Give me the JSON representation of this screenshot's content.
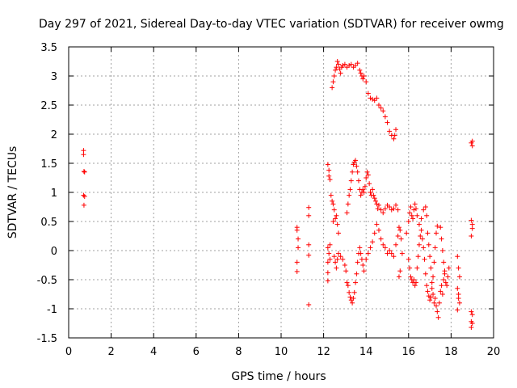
{
  "chart_data": {
    "type": "scatter",
    "title": "Day 297 of 2021, Sidereal Day-to-day VTEC variation (SDTVAR) for receiver owmg",
    "xlabel": "GPS time / hours",
    "ylabel": "SDTVAR / TECUs",
    "xlim": [
      0,
      20
    ],
    "ylim": [
      -1.5,
      3.5
    ],
    "xticks": [
      0,
      2,
      4,
      6,
      8,
      10,
      12,
      14,
      16,
      18,
      20
    ],
    "xtick_labels": [
      "0",
      "2",
      "4",
      "6",
      "8",
      "10",
      "12",
      "14",
      "16",
      "18",
      "20"
    ],
    "yticks": [
      -1.5,
      -1,
      -0.5,
      0,
      0.5,
      1,
      1.5,
      2,
      2.5,
      3,
      3.5
    ],
    "ytick_labels": [
      "-1.5",
      "-1",
      "-0.5",
      "0",
      "0.5",
      "1",
      "1.5",
      "2",
      "2.5",
      "3",
      "3.5"
    ],
    "grid": true,
    "marker": "+",
    "color": "#ff0000",
    "series": [
      {
        "name": "SDTVAR",
        "points": [
          [
            0.7,
            1.72
          ],
          [
            0.7,
            1.65
          ],
          [
            0.72,
            1.36
          ],
          [
            0.75,
            1.35
          ],
          [
            0.7,
            0.95
          ],
          [
            0.75,
            0.93
          ],
          [
            0.72,
            0.78
          ],
          [
            10.75,
            0.4
          ],
          [
            10.75,
            0.35
          ],
          [
            10.8,
            0.2
          ],
          [
            10.8,
            0.05
          ],
          [
            10.75,
            -0.2
          ],
          [
            10.75,
            -0.36
          ],
          [
            11.3,
            0.74
          ],
          [
            11.3,
            0.6
          ],
          [
            11.3,
            0.1
          ],
          [
            11.3,
            -0.08
          ],
          [
            11.3,
            -0.93
          ],
          [
            12.2,
            1.48
          ],
          [
            12.25,
            1.38
          ],
          [
            12.25,
            1.28
          ],
          [
            12.3,
            1.22
          ],
          [
            12.35,
            0.95
          ],
          [
            12.2,
            0.05
          ],
          [
            12.25,
            -0.05
          ],
          [
            12.2,
            -0.2
          ],
          [
            12.2,
            -0.38
          ],
          [
            12.2,
            -0.52
          ],
          [
            12.3,
            -0.15
          ],
          [
            12.3,
            0.1
          ],
          [
            12.4,
            2.8
          ],
          [
            12.45,
            2.9
          ],
          [
            12.5,
            3.0
          ],
          [
            12.55,
            3.1
          ],
          [
            12.6,
            3.15
          ],
          [
            12.65,
            3.25
          ],
          [
            12.7,
            3.2
          ],
          [
            12.75,
            3.12
          ],
          [
            12.8,
            3.05
          ],
          [
            12.85,
            3.15
          ],
          [
            12.9,
            3.18
          ],
          [
            13.0,
            3.2
          ],
          [
            13.1,
            3.15
          ],
          [
            13.2,
            3.18
          ],
          [
            13.3,
            3.2
          ],
          [
            13.4,
            3.15
          ],
          [
            13.5,
            3.18
          ],
          [
            13.6,
            3.22
          ],
          [
            13.7,
            3.1
          ],
          [
            13.75,
            3.05
          ],
          [
            13.8,
            3.0
          ],
          [
            13.85,
            2.95
          ],
          [
            13.9,
            3.0
          ],
          [
            14.0,
            2.9
          ],
          [
            14.1,
            2.7
          ],
          [
            14.2,
            2.62
          ],
          [
            14.3,
            2.6
          ],
          [
            14.4,
            2.58
          ],
          [
            14.5,
            2.62
          ],
          [
            14.6,
            2.5
          ],
          [
            14.7,
            2.45
          ],
          [
            14.8,
            2.4
          ],
          [
            14.9,
            2.3
          ],
          [
            15.0,
            2.2
          ],
          [
            15.1,
            2.05
          ],
          [
            15.2,
            1.98
          ],
          [
            15.3,
            1.92
          ],
          [
            15.35,
            1.98
          ],
          [
            15.4,
            2.08
          ],
          [
            12.4,
            0.85
          ],
          [
            12.45,
            0.8
          ],
          [
            12.5,
            0.7
          ],
          [
            12.45,
            0.5
          ],
          [
            12.55,
            0.55
          ],
          [
            12.6,
            0.6
          ],
          [
            12.65,
            0.45
          ],
          [
            12.7,
            0.3
          ],
          [
            12.5,
            -0.1
          ],
          [
            12.55,
            -0.2
          ],
          [
            12.6,
            -0.3
          ],
          [
            12.65,
            -0.15
          ],
          [
            12.7,
            -0.05
          ],
          [
            12.8,
            -0.1
          ],
          [
            12.9,
            -0.15
          ],
          [
            13.0,
            -0.25
          ],
          [
            13.05,
            -0.35
          ],
          [
            13.1,
            -0.55
          ],
          [
            13.15,
            -0.6
          ],
          [
            13.2,
            -0.72
          ],
          [
            13.25,
            -0.8
          ],
          [
            13.3,
            -0.85
          ],
          [
            13.35,
            -0.9
          ],
          [
            13.4,
            -0.82
          ],
          [
            13.45,
            -0.72
          ],
          [
            13.5,
            -0.55
          ],
          [
            13.55,
            -0.4
          ],
          [
            13.6,
            -0.2
          ],
          [
            13.65,
            -0.05
          ],
          [
            13.7,
            0.05
          ],
          [
            13.75,
            -0.05
          ],
          [
            13.8,
            -0.15
          ],
          [
            13.85,
            -0.25
          ],
          [
            13.9,
            -0.35
          ],
          [
            13.1,
            0.65
          ],
          [
            13.15,
            0.8
          ],
          [
            13.2,
            0.95
          ],
          [
            13.25,
            1.05
          ],
          [
            13.3,
            1.2
          ],
          [
            13.35,
            1.35
          ],
          [
            13.4,
            1.48
          ],
          [
            13.45,
            1.52
          ],
          [
            13.5,
            1.55
          ],
          [
            13.55,
            1.45
          ],
          [
            13.6,
            1.35
          ],
          [
            13.65,
            1.2
          ],
          [
            13.7,
            1.05
          ],
          [
            13.75,
            0.95
          ],
          [
            13.8,
            1.0
          ],
          [
            13.85,
            1.05
          ],
          [
            13.9,
            1.0
          ],
          [
            13.95,
            1.1
          ],
          [
            14.0,
            1.25
          ],
          [
            14.05,
            1.35
          ],
          [
            14.1,
            1.3
          ],
          [
            14.15,
            1.15
          ],
          [
            14.2,
            1.0
          ],
          [
            14.25,
            0.95
          ],
          [
            14.3,
            1.05
          ],
          [
            14.35,
            0.95
          ],
          [
            14.4,
            0.9
          ],
          [
            14.45,
            0.85
          ],
          [
            14.5,
            0.8
          ],
          [
            14.55,
            0.72
          ],
          [
            14.6,
            0.78
          ],
          [
            14.7,
            0.7
          ],
          [
            14.8,
            0.65
          ],
          [
            14.9,
            0.72
          ],
          [
            15.0,
            0.78
          ],
          [
            15.1,
            0.75
          ],
          [
            15.2,
            0.7
          ],
          [
            15.3,
            0.72
          ],
          [
            15.4,
            0.78
          ],
          [
            15.5,
            0.7
          ],
          [
            14.0,
            -0.15
          ],
          [
            14.1,
            -0.05
          ],
          [
            14.2,
            0.05
          ],
          [
            14.3,
            0.15
          ],
          [
            14.4,
            0.3
          ],
          [
            14.5,
            0.45
          ],
          [
            14.6,
            0.35
          ],
          [
            14.7,
            0.2
          ],
          [
            14.8,
            0.1
          ],
          [
            14.9,
            0.05
          ],
          [
            15.0,
            -0.05
          ],
          [
            15.1,
            0.0
          ],
          [
            15.2,
            -0.05
          ],
          [
            15.3,
            -0.1
          ],
          [
            15.4,
            0.1
          ],
          [
            15.5,
            0.25
          ],
          [
            15.55,
            0.4
          ],
          [
            15.6,
            0.35
          ],
          [
            15.65,
            0.2
          ],
          [
            15.7,
            -0.05
          ],
          [
            15.6,
            -0.35
          ],
          [
            15.55,
            -0.45
          ],
          [
            15.9,
            0.3
          ],
          [
            16.0,
            0.5
          ],
          [
            16.05,
            0.65
          ],
          [
            16.1,
            0.75
          ],
          [
            16.15,
            0.6
          ],
          [
            16.2,
            0.55
          ],
          [
            16.25,
            0.7
          ],
          [
            16.3,
            0.8
          ],
          [
            16.35,
            0.72
          ],
          [
            16.4,
            0.6
          ],
          [
            16.5,
            0.45
          ],
          [
            16.6,
            0.55
          ],
          [
            16.7,
            0.7
          ],
          [
            16.8,
            0.75
          ],
          [
            16.85,
            0.6
          ],
          [
            16.0,
            -0.15
          ],
          [
            16.05,
            -0.3
          ],
          [
            16.1,
            -0.45
          ],
          [
            16.15,
            -0.5
          ],
          [
            16.2,
            -0.55
          ],
          [
            16.25,
            -0.5
          ],
          [
            16.3,
            -0.6
          ],
          [
            16.35,
            -0.55
          ],
          [
            16.4,
            -0.3
          ],
          [
            16.45,
            -0.1
          ],
          [
            16.5,
            0.1
          ],
          [
            16.55,
            0.25
          ],
          [
            16.6,
            0.35
          ],
          [
            16.65,
            0.2
          ],
          [
            16.7,
            0.05
          ],
          [
            16.75,
            -0.15
          ],
          [
            16.8,
            -0.4
          ],
          [
            16.85,
            -0.6
          ],
          [
            16.9,
            -0.7
          ],
          [
            16.95,
            -0.78
          ],
          [
            17.0,
            -0.85
          ],
          [
            17.05,
            -0.8
          ],
          [
            17.1,
            -0.65
          ],
          [
            17.15,
            -0.45
          ],
          [
            17.2,
            -0.2
          ],
          [
            17.25,
            0.05
          ],
          [
            17.3,
            0.3
          ],
          [
            17.35,
            0.42
          ],
          [
            16.9,
            0.3
          ],
          [
            16.95,
            0.1
          ],
          [
            17.0,
            -0.1
          ],
          [
            17.05,
            -0.3
          ],
          [
            17.1,
            -0.55
          ],
          [
            17.15,
            -0.75
          ],
          [
            17.2,
            -0.9
          ],
          [
            17.25,
            -0.82
          ],
          [
            17.3,
            -0.95
          ],
          [
            17.35,
            -1.05
          ],
          [
            17.4,
            -1.15
          ],
          [
            17.45,
            -0.9
          ],
          [
            17.5,
            -0.7
          ],
          [
            17.5,
            0.4
          ],
          [
            17.55,
            0.2
          ],
          [
            17.6,
            0.0
          ],
          [
            17.65,
            -0.2
          ],
          [
            17.7,
            -0.4
          ],
          [
            17.75,
            -0.55
          ],
          [
            17.8,
            -0.6
          ],
          [
            17.85,
            -0.45
          ],
          [
            17.9,
            -0.3
          ],
          [
            17.55,
            -0.6
          ],
          [
            17.6,
            -0.75
          ],
          [
            17.65,
            -0.5
          ],
          [
            17.7,
            -0.35
          ],
          [
            18.3,
            -0.1
          ],
          [
            18.35,
            -0.3
          ],
          [
            18.4,
            -0.45
          ],
          [
            18.3,
            -0.65
          ],
          [
            18.35,
            -0.75
          ],
          [
            18.35,
            -0.82
          ],
          [
            18.4,
            -0.9
          ],
          [
            18.3,
            -1.02
          ],
          [
            18.95,
            1.85
          ],
          [
            19.0,
            1.88
          ],
          [
            19.0,
            1.8
          ],
          [
            18.95,
            0.52
          ],
          [
            19.0,
            0.45
          ],
          [
            19.0,
            0.38
          ],
          [
            18.95,
            0.25
          ],
          [
            18.95,
            -1.05
          ],
          [
            19.0,
            -1.1
          ],
          [
            18.95,
            -1.22
          ],
          [
            19.0,
            -1.25
          ],
          [
            18.95,
            -1.32
          ]
        ]
      }
    ]
  }
}
